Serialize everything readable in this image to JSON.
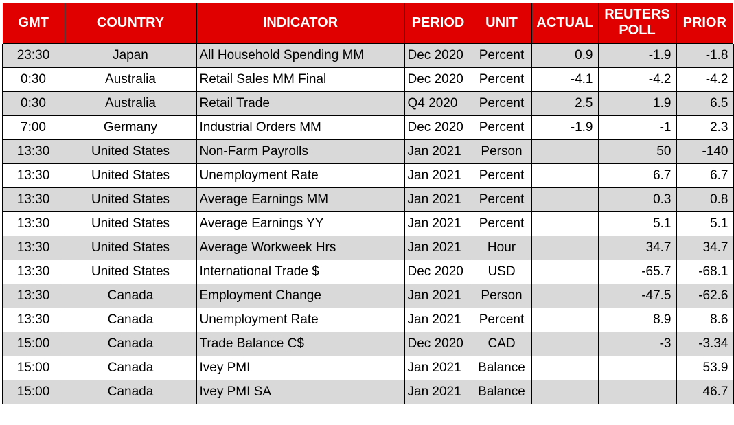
{
  "table": {
    "columns": [
      "GMT",
      "COUNTRY",
      "INDICATOR",
      "PERIOD",
      "UNIT",
      "ACTUAL",
      "REUTERS POLL",
      "PRIOR"
    ],
    "rows": [
      [
        "23:30",
        "Japan",
        "All Household Spending MM",
        "Dec 2020",
        "Percent",
        "0.9",
        "-1.9",
        "-1.8"
      ],
      [
        "0:30",
        "Australia",
        "Retail Sales MM Final",
        "Dec 2020",
        "Percent",
        "-4.1",
        "-4.2",
        "-4.2"
      ],
      [
        "0:30",
        "Australia",
        "Retail Trade",
        "Q4 2020",
        "Percent",
        "2.5",
        "1.9",
        "6.5"
      ],
      [
        "7:00",
        "Germany",
        "Industrial Orders MM",
        "Dec 2020",
        "Percent",
        "-1.9",
        "-1",
        "2.3"
      ],
      [
        "13:30",
        "United States",
        "Non-Farm Payrolls",
        "Jan 2021",
        "Person",
        "",
        "50",
        "-140"
      ],
      [
        "13:30",
        "United States",
        "Unemployment Rate",
        "Jan 2021",
        "Percent",
        "",
        "6.7",
        "6.7"
      ],
      [
        "13:30",
        "United States",
        "Average Earnings MM",
        "Jan 2021",
        "Percent",
        "",
        "0.3",
        "0.8"
      ],
      [
        "13:30",
        "United States",
        "Average Earnings YY",
        "Jan 2021",
        "Percent",
        "",
        "5.1",
        "5.1"
      ],
      [
        "13:30",
        "United States",
        "Average Workweek Hrs",
        "Jan 2021",
        "Hour",
        "",
        "34.7",
        "34.7"
      ],
      [
        "13:30",
        "United States",
        "International Trade $",
        "Dec 2020",
        "USD",
        "",
        "-65.7",
        "-68.1"
      ],
      [
        "13:30",
        "Canada",
        "Employment Change",
        "Jan 2021",
        "Person",
        "",
        "-47.5",
        "-62.6"
      ],
      [
        "13:30",
        "Canada",
        "Unemployment Rate",
        "Jan 2021",
        "Percent",
        "",
        "8.9",
        "8.6"
      ],
      [
        "15:00",
        "Canada",
        "Trade Balance C$",
        "Dec 2020",
        "CAD",
        "",
        "-3",
        "-3.34"
      ],
      [
        "15:00",
        "Canada",
        "Ivey PMI",
        "Jan 2021",
        "Balance",
        "",
        "",
        "53.9"
      ],
      [
        "15:00",
        "Canada",
        "Ivey PMI SA",
        "Jan 2021",
        "Balance",
        "",
        "",
        "46.7"
      ]
    ]
  },
  "colors": {
    "header_bg": "#e00000",
    "header_text": "#ffffff",
    "row_shaded": "#d9d9d9",
    "row_plain": "#ffffff",
    "border": "#000000",
    "cell_text": "#000000"
  }
}
